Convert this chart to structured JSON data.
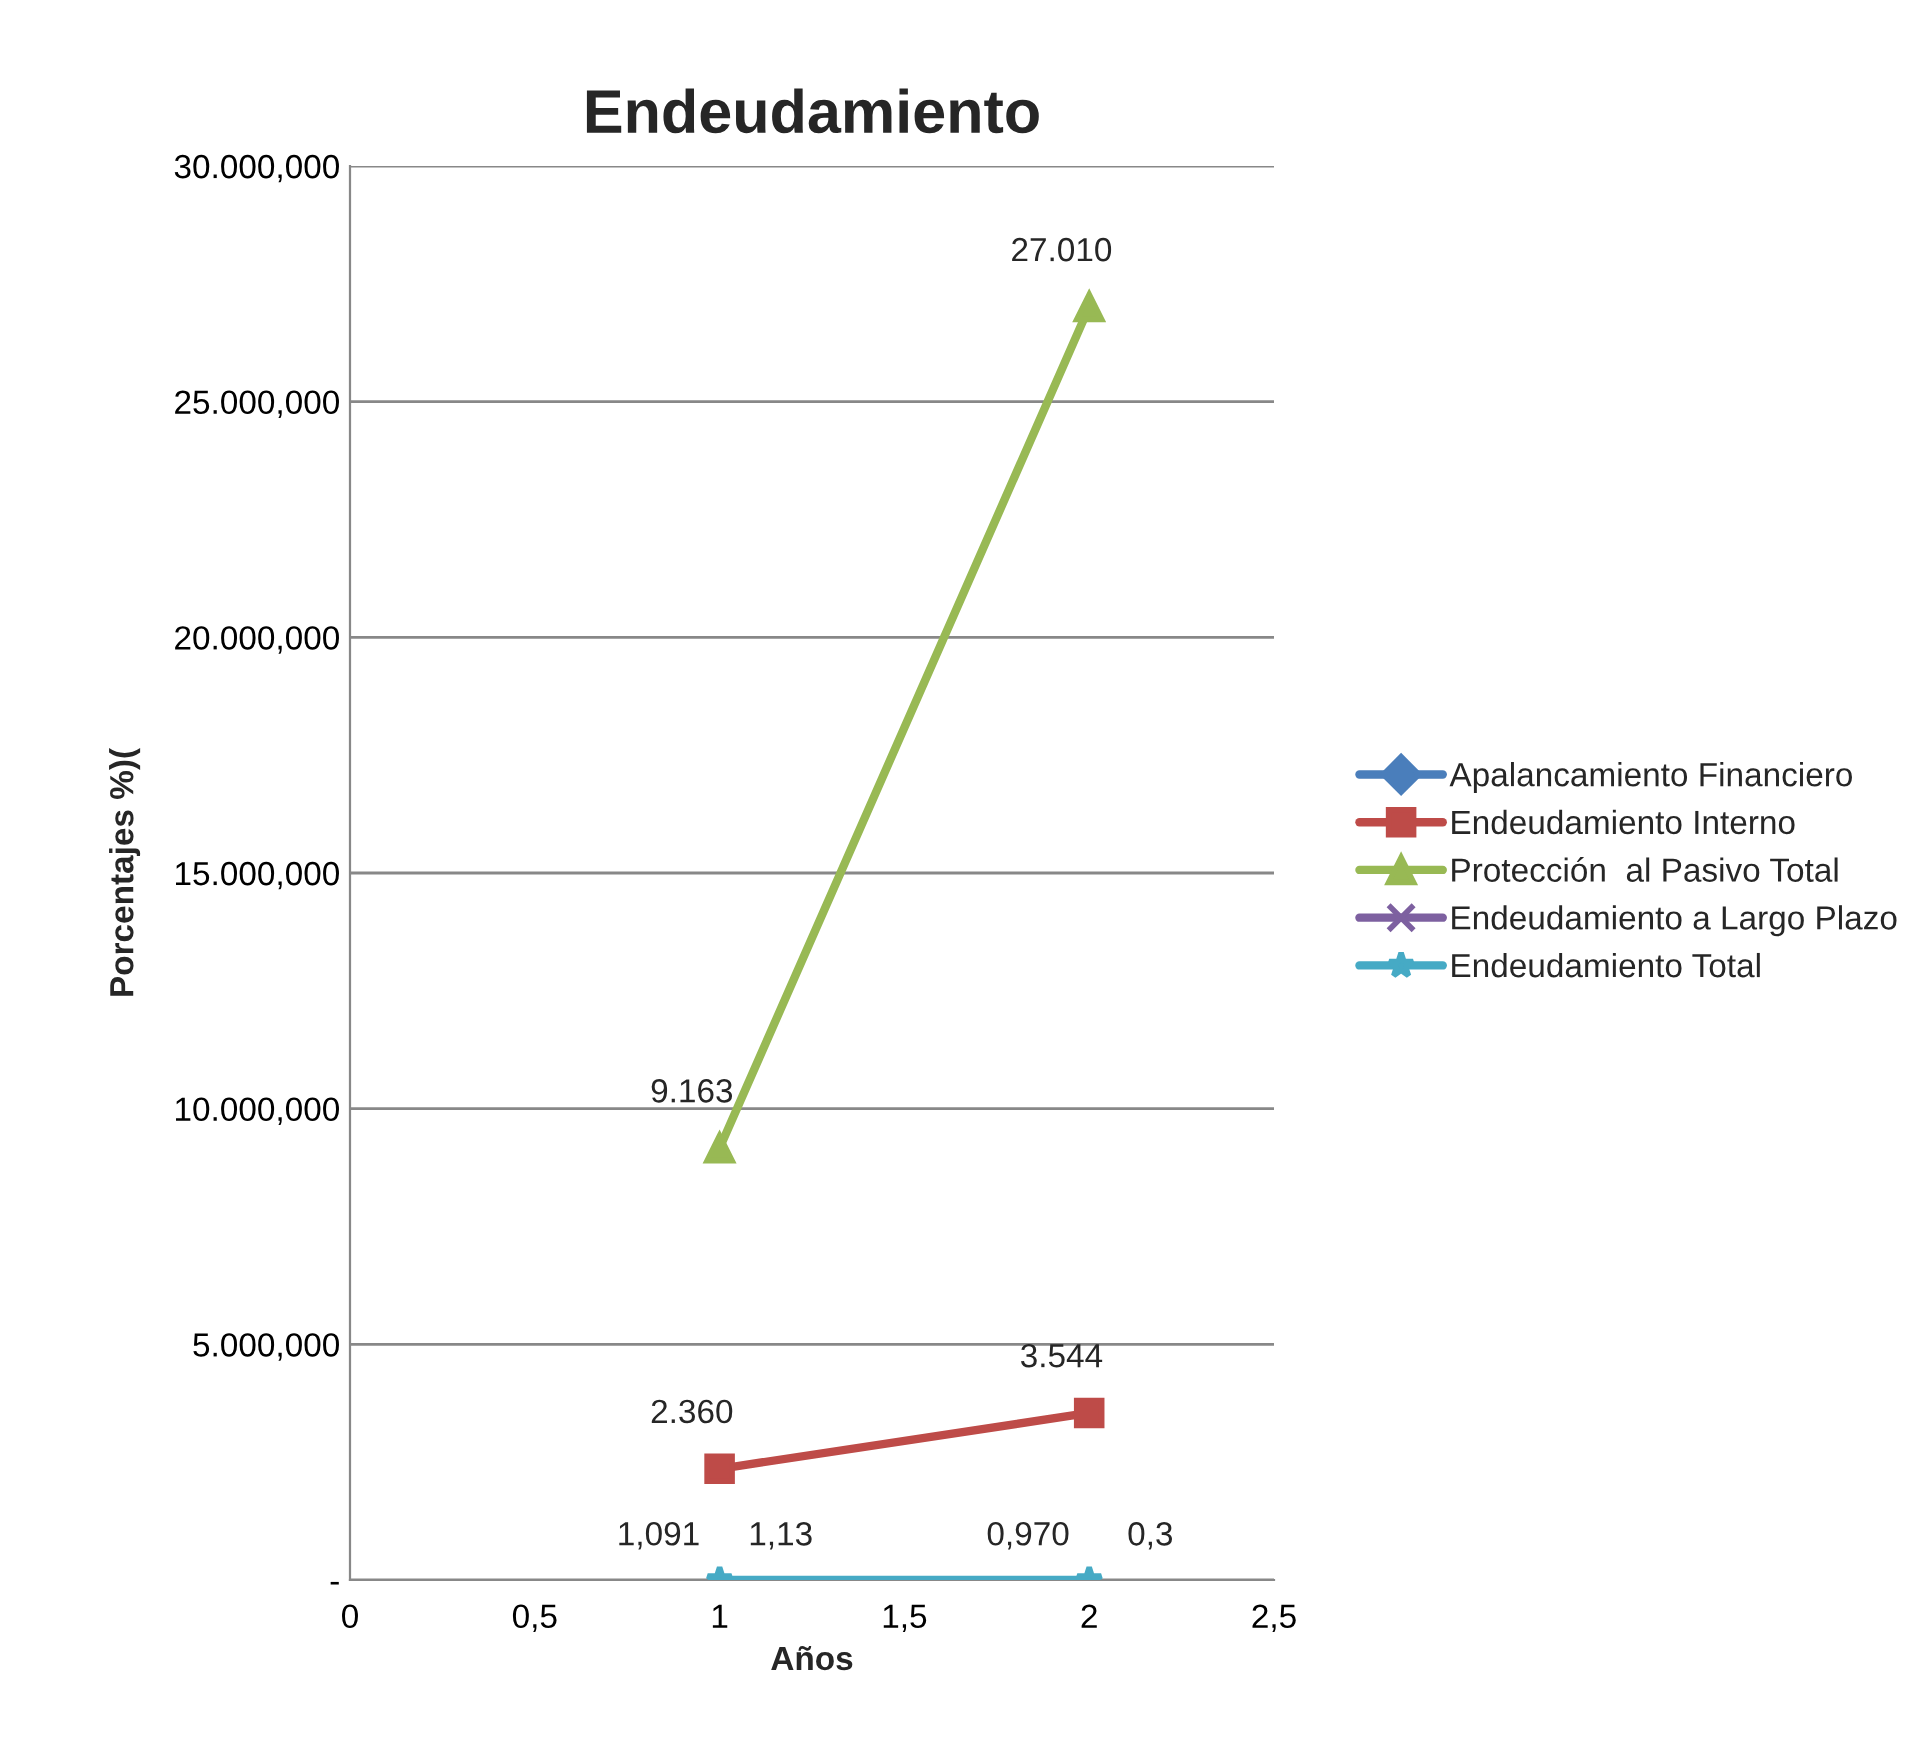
{
  "chart_data": {
    "type": "line",
    "title": "Endeudamiento",
    "xlabel": "Años",
    "ylabel": "Porcentajes %)(",
    "x": [
      1,
      2
    ],
    "series": [
      {
        "name": "Apalancamiento Financiero",
        "color": "#4a7ebb",
        "marker": "diamond",
        "values": [
          null,
          null
        ]
      },
      {
        "name": "Endeudamiento Interno",
        "color": "#be4b48",
        "marker": "square",
        "values": [
          2360,
          3544
        ],
        "value_labels": [
          "2.360",
          "3.544"
        ]
      },
      {
        "name": "Protección  al Pasivo Total",
        "color": "#98b954",
        "marker": "triangle",
        "values": [
          9163,
          27010
        ],
        "value_labels": [
          "9.163",
          "27.010"
        ]
      },
      {
        "name": "Endeudamiento a Largo Plazo",
        "color": "#7d60a0",
        "marker": "cross",
        "values": [
          null,
          null
        ]
      },
      {
        "name": "Endeudamiento Total",
        "color": "#46aac5",
        "marker": "star",
        "values": [
          1.091,
          0.97
        ],
        "value_labels": [
          "1,091",
          "0,970"
        ]
      }
    ],
    "xlim": [
      0,
      2.5
    ],
    "xticks": [
      0,
      {
        "value": 0.5,
        "label": "0,5"
      },
      1,
      {
        "value": 1.5,
        "label": "1,5"
      },
      2,
      {
        "value": 2.5,
        "label": "2,5"
      }
    ],
    "ylim": [
      0,
      30000
    ],
    "yticks": [
      {
        "value": 0,
        "label": "-"
      },
      {
        "value": 5000,
        "label": "5.000,000"
      },
      {
        "value": 10000,
        "label": "10.000,000"
      },
      {
        "value": 15000,
        "label": "15.000,000"
      },
      {
        "value": 20000,
        "label": "20.000,000"
      },
      {
        "value": 25000,
        "label": "25.000,000"
      },
      {
        "value": 30000,
        "label": "30.000,000"
      }
    ],
    "annotations": [
      {
        "text": "1,13",
        "x": 1,
        "y": 0
      },
      {
        "text": "0,3",
        "x": 2,
        "y": 0
      }
    ],
    "grid": "y",
    "legend": "right"
  }
}
